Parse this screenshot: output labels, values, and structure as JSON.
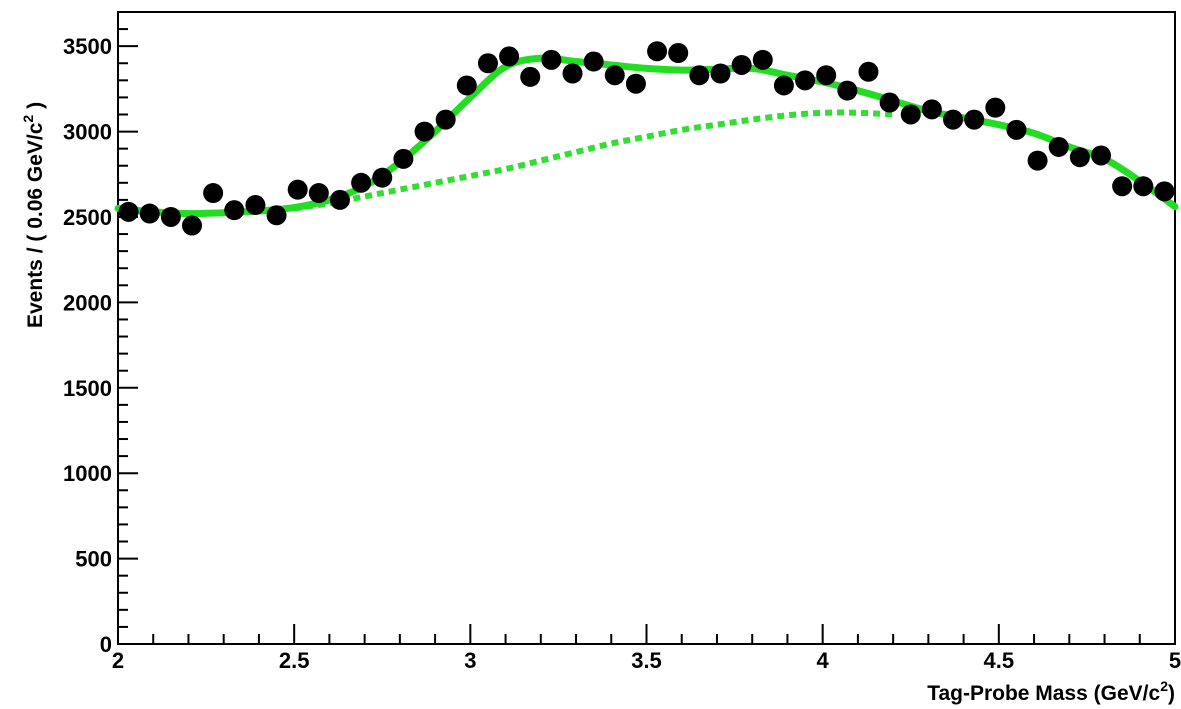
{
  "chart_data": {
    "type": "scatter",
    "xlabel_main": "Tag-Probe Mass (GeV/c",
    "xlabel_sup": "2",
    "xlabel_end": ")",
    "ylabel_main": "Events / ( 0.06 GeV/c",
    "ylabel_sup": "2",
    "ylabel_end": " )",
    "xlim": [
      2,
      5
    ],
    "ylim": [
      0,
      3700
    ],
    "x_ticks": [
      {
        "value": 2,
        "label": "2"
      },
      {
        "value": 2.5,
        "label": "2.5"
      },
      {
        "value": 3,
        "label": "3"
      },
      {
        "value": 3.5,
        "label": "3.5"
      },
      {
        "value": 4,
        "label": "4"
      },
      {
        "value": 4.5,
        "label": "4.5"
      },
      {
        "value": 5,
        "label": "5"
      }
    ],
    "y_ticks": [
      {
        "value": 0,
        "label": "0"
      },
      {
        "value": 500,
        "label": "500"
      },
      {
        "value": 1000,
        "label": "1000"
      },
      {
        "value": 1500,
        "label": "1500"
      },
      {
        "value": 2000,
        "label": "2000"
      },
      {
        "value": 2500,
        "label": "2500"
      },
      {
        "value": 3000,
        "label": "3000"
      },
      {
        "value": 3500,
        "label": "3500"
      }
    ],
    "grid": false,
    "data_points": [
      {
        "x": 2.03,
        "y": 2530
      },
      {
        "x": 2.09,
        "y": 2520
      },
      {
        "x": 2.15,
        "y": 2500
      },
      {
        "x": 2.21,
        "y": 2450
      },
      {
        "x": 2.27,
        "y": 2640
      },
      {
        "x": 2.33,
        "y": 2540
      },
      {
        "x": 2.39,
        "y": 2570
      },
      {
        "x": 2.45,
        "y": 2510
      },
      {
        "x": 2.51,
        "y": 2660
      },
      {
        "x": 2.57,
        "y": 2640
      },
      {
        "x": 2.63,
        "y": 2600
      },
      {
        "x": 2.69,
        "y": 2700
      },
      {
        "x": 2.75,
        "y": 2730
      },
      {
        "x": 2.81,
        "y": 2840
      },
      {
        "x": 2.87,
        "y": 3000
      },
      {
        "x": 2.93,
        "y": 3070
      },
      {
        "x": 2.99,
        "y": 3270
      },
      {
        "x": 3.05,
        "y": 3400
      },
      {
        "x": 3.11,
        "y": 3440
      },
      {
        "x": 3.17,
        "y": 3320
      },
      {
        "x": 3.23,
        "y": 3420
      },
      {
        "x": 3.29,
        "y": 3340
      },
      {
        "x": 3.35,
        "y": 3410
      },
      {
        "x": 3.41,
        "y": 3330
      },
      {
        "x": 3.47,
        "y": 3280
      },
      {
        "x": 3.53,
        "y": 3470
      },
      {
        "x": 3.59,
        "y": 3460
      },
      {
        "x": 3.65,
        "y": 3330
      },
      {
        "x": 3.71,
        "y": 3340
      },
      {
        "x": 3.77,
        "y": 3390
      },
      {
        "x": 3.83,
        "y": 3420
      },
      {
        "x": 3.89,
        "y": 3270
      },
      {
        "x": 3.95,
        "y": 3300
      },
      {
        "x": 4.01,
        "y": 3330
      },
      {
        "x": 4.07,
        "y": 3240
      },
      {
        "x": 4.13,
        "y": 3350
      },
      {
        "x": 4.19,
        "y": 3170
      },
      {
        "x": 4.25,
        "y": 3100
      },
      {
        "x": 4.31,
        "y": 3130
      },
      {
        "x": 4.37,
        "y": 3070
      },
      {
        "x": 4.43,
        "y": 3070
      },
      {
        "x": 4.49,
        "y": 3140
      },
      {
        "x": 4.55,
        "y": 3010
      },
      {
        "x": 4.61,
        "y": 2830
      },
      {
        "x": 4.67,
        "y": 2910
      },
      {
        "x": 4.73,
        "y": 2850
      },
      {
        "x": 4.79,
        "y": 2860
      },
      {
        "x": 4.85,
        "y": 2680
      },
      {
        "x": 4.91,
        "y": 2680
      },
      {
        "x": 4.97,
        "y": 2650
      }
    ],
    "fit_total": {
      "style": "solid",
      "color": "#22dd22",
      "x": [
        2.0,
        2.1,
        2.2,
        2.3,
        2.4,
        2.5,
        2.6,
        2.7,
        2.8,
        2.9,
        3.0,
        3.1,
        3.2,
        3.3,
        3.4,
        3.5,
        3.6,
        3.7,
        3.8,
        3.9,
        4.0,
        4.1,
        4.2,
        4.3,
        4.4,
        4.5,
        4.6,
        4.7,
        4.8,
        4.9,
        5.0
      ],
      "y": [
        2550,
        2530,
        2520,
        2525,
        2535,
        2555,
        2600,
        2680,
        2820,
        3000,
        3200,
        3380,
        3430,
        3410,
        3390,
        3370,
        3360,
        3365,
        3370,
        3330,
        3290,
        3240,
        3180,
        3120,
        3080,
        3040,
        2990,
        2910,
        2840,
        2710,
        2560
      ]
    },
    "fit_background": {
      "style": "dotted",
      "color": "#33dd33",
      "x": [
        2.5,
        2.6,
        2.7,
        2.8,
        2.9,
        3.0,
        3.1,
        3.2,
        3.3,
        3.4,
        3.5,
        3.6,
        3.7,
        3.8,
        3.9,
        4.0,
        4.1,
        4.2
      ],
      "y": [
        2550,
        2580,
        2620,
        2660,
        2700,
        2740,
        2780,
        2830,
        2880,
        2930,
        2970,
        3010,
        3040,
        3070,
        3095,
        3110,
        3110,
        3100
      ]
    }
  }
}
